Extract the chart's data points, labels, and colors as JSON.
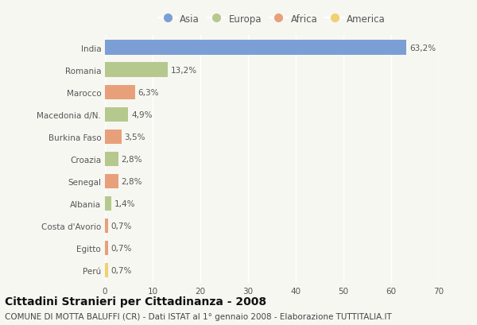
{
  "countries": [
    "India",
    "Romania",
    "Marocco",
    "Macedonia d/N.",
    "Burkina Faso",
    "Croazia",
    "Senegal",
    "Albania",
    "Costa d'Avorio",
    "Egitto",
    "Perú"
  ],
  "values": [
    63.2,
    13.2,
    6.3,
    4.9,
    3.5,
    2.8,
    2.8,
    1.4,
    0.7,
    0.7,
    0.7
  ],
  "labels": [
    "63,2%",
    "13,2%",
    "6,3%",
    "4,9%",
    "3,5%",
    "2,8%",
    "2,8%",
    "1,4%",
    "0,7%",
    "0,7%",
    "0,7%"
  ],
  "continents": [
    "Asia",
    "Europa",
    "Africa",
    "Europa",
    "Africa",
    "Europa",
    "Africa",
    "Europa",
    "Africa",
    "Africa",
    "America"
  ],
  "colors": {
    "Asia": "#7b9fd4",
    "Europa": "#b5c98e",
    "Africa": "#e8a07a",
    "America": "#f0d070"
  },
  "legend_order": [
    "Asia",
    "Europa",
    "Africa",
    "America"
  ],
  "xlim": [
    0,
    70
  ],
  "xticks": [
    0,
    10,
    20,
    30,
    40,
    50,
    60,
    70
  ],
  "title": "Cittadini Stranieri per Cittadinanza - 2008",
  "subtitle": "COMUNE DI MOTTA BALUFFI (CR) - Dati ISTAT al 1° gennaio 2008 - Elaborazione TUTTITALIA.IT",
  "bg_color": "#f7f7f2",
  "bar_height": 0.65,
  "grid_color": "#ffffff",
  "title_fontsize": 10,
  "subtitle_fontsize": 7.5,
  "label_fontsize": 7.5,
  "tick_fontsize": 7.5,
  "legend_fontsize": 8.5
}
